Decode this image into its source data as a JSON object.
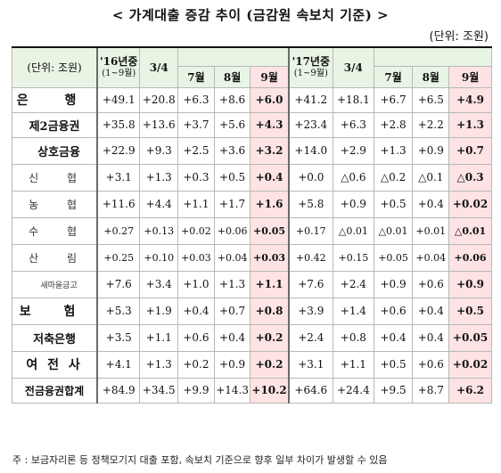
{
  "title": "< 가계대출 증감 추이 (금감원 속보치 기준) >",
  "unit": "(단위: 조원)",
  "header": {
    "corner": "(단위: 조원)",
    "y16_label": "'16년중",
    "y16_range": "(1~9월)",
    "q16": "3/4",
    "y17_label": "'17년중",
    "y17_range": "(1~9월)",
    "q17": "3/4",
    "m7": "7월",
    "m8": "8월",
    "m9": "9월"
  },
  "rows": [
    {
      "label": "은 행",
      "values": [
        "+49.1",
        "+20.8",
        "+6.3",
        "+8.6",
        "+6.0",
        "+41.2",
        "+18.1",
        "+6.7",
        "+6.5",
        "+4.9"
      ]
    },
    {
      "label": "제2금융권",
      "values": [
        "+35.8",
        "+13.6",
        "+3.7",
        "+5.6",
        "+4.3",
        "+23.4",
        "+6.3",
        "+2.8",
        "+2.2",
        "+1.3"
      ]
    },
    {
      "label": "상호금융",
      "values": [
        "+22.9",
        "+9.3",
        "+2.5",
        "+3.6",
        "+3.2",
        "+14.0",
        "+2.9",
        "+1.3",
        "+0.9",
        "+0.7"
      ]
    },
    {
      "label": "신 협",
      "values": [
        "+3.1",
        "+1.3",
        "+0.3",
        "+0.5",
        "+0.4",
        "+0.0",
        "△0.6",
        "△0.2",
        "△0.1",
        "△0.3"
      ]
    },
    {
      "label": "농 협",
      "values": [
        "+11.6",
        "+4.4",
        "+1.1",
        "+1.7",
        "+1.6",
        "+5.8",
        "+0.9",
        "+0.5",
        "+0.4",
        "+0.02"
      ]
    },
    {
      "label": "수 협",
      "values": [
        "+0.27",
        "+0.13",
        "+0.02",
        "+0.06",
        "+0.05",
        "+0.17",
        "△0.01",
        "△0.01",
        "+0.01",
        "△0.01"
      ]
    },
    {
      "label": "산 림",
      "values": [
        "+0.25",
        "+0.10",
        "+0.03",
        "+0.04",
        "+0.03",
        "+0.42",
        "+0.15",
        "+0.05",
        "+0.04",
        "+0.06"
      ]
    },
    {
      "label": "새마을금고",
      "values": [
        "+7.6",
        "+3.4",
        "+1.0",
        "+1.3",
        "+1.1",
        "+7.6",
        "+2.4",
        "+0.9",
        "+0.6",
        "+0.9"
      ]
    },
    {
      "label": "보 험",
      "values": [
        "+5.3",
        "+1.9",
        "+0.4",
        "+0.7",
        "+0.8",
        "+3.9",
        "+1.4",
        "+0.6",
        "+0.4",
        "+0.5"
      ]
    },
    {
      "label": "저축은행",
      "values": [
        "+3.5",
        "+1.1",
        "+0.6",
        "+0.4",
        "+0.2",
        "+2.4",
        "+0.8",
        "+0.4",
        "+0.4",
        "+0.05"
      ]
    },
    {
      "label": "여 전 사",
      "values": [
        "+4.1",
        "+1.3",
        "+0.2",
        "+0.9",
        "+0.2",
        "+3.1",
        "+1.1",
        "+0.5",
        "+0.6",
        "+0.02"
      ]
    },
    {
      "label": "전금융권합계",
      "values": [
        "+84.9",
        "+34.5",
        "+9.9",
        "+14.3",
        "+10.2",
        "+64.6",
        "+24.4",
        "+9.5",
        "+8.7",
        "+6.2"
      ]
    }
  ],
  "note": "주 : 보금자리론 등 정책모기지 대출 포함, 속보치 기준으로 향후 일부 차이가 발생할 수 있음"
}
